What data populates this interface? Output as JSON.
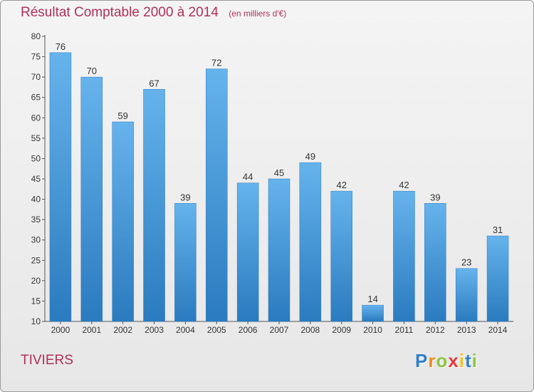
{
  "title": "Résultat Comptable 2000 à 2014",
  "subtitle": "(en milliers d'€)",
  "commune": "TIVIERS",
  "logo": {
    "letters": [
      "P",
      "r",
      "o",
      "x",
      "i",
      "t",
      "i"
    ],
    "colors": [
      "#2f7fc8",
      "#f08a1c",
      "#8cc63e",
      "#e23a3a",
      "#f2c21b",
      "#2f7fc8",
      "#8cc63e"
    ]
  },
  "colors": {
    "bar_top": "#66b3ec",
    "bar_bottom": "#2a7bbf",
    "title": "#b0305a",
    "axis": "#555555"
  },
  "chart_data": {
    "type": "bar",
    "title": "Résultat Comptable 2000 à 2014",
    "categories": [
      "2000",
      "2001",
      "2002",
      "2003",
      "2004",
      "2005",
      "2006",
      "2007",
      "2008",
      "2009",
      "2010",
      "2011",
      "2012",
      "2013",
      "2014"
    ],
    "values": [
      76,
      70,
      59,
      67,
      39,
      72,
      44,
      45,
      49,
      42,
      14,
      42,
      39,
      23,
      31
    ],
    "ylim": [
      10,
      80
    ],
    "yticks": [
      10,
      15,
      20,
      25,
      30,
      35,
      40,
      45,
      50,
      55,
      60,
      65,
      70,
      75,
      80
    ],
    "xlabel": "",
    "ylabel": "",
    "grid": false
  }
}
